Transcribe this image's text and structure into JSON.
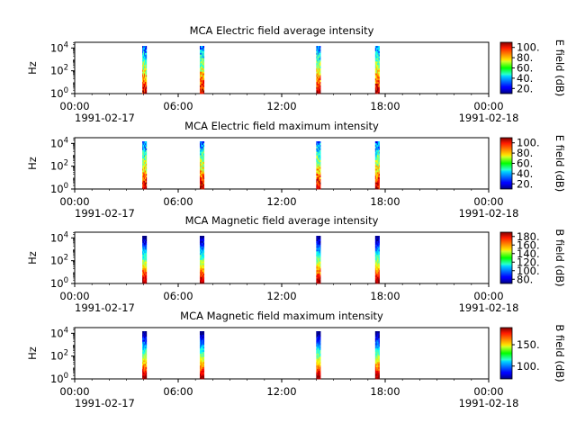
{
  "chart_data": [
    {
      "type": "heatmap",
      "title": "MCA  Electric field average intensity",
      "ylabel": "Hz",
      "y_ticks": [
        "10^0",
        "10^2",
        "10^4"
      ],
      "y_scale": "log",
      "ylim": [
        1,
        31622
      ],
      "x_ticks": [
        "00:00",
        "06:00",
        "12:00",
        "18:00",
        "00:00"
      ],
      "x_dates": [
        "1991-02-17",
        "1991-02-18"
      ],
      "xlim": [
        "1991-02-17 00:00",
        "1991-02-18 00:00"
      ],
      "colorbar_label": "E field (dB)",
      "colorbar_ticks": [
        20,
        40,
        60,
        80,
        100
      ],
      "colorbar_range": [
        10,
        110
      ],
      "colormap": "jet",
      "data_intervals": [
        {
          "start": "03:55",
          "end": "04:10"
        },
        {
          "start": "07:15",
          "end": "07:30"
        },
        {
          "start": "14:00",
          "end": "14:15"
        },
        {
          "start": "17:25",
          "end": "17:40"
        }
      ]
    },
    {
      "type": "heatmap",
      "title": "MCA  Electric field maximum intensity",
      "ylabel": "Hz",
      "y_ticks": [
        "10^0",
        "10^2",
        "10^4"
      ],
      "y_scale": "log",
      "ylim": [
        1,
        31622
      ],
      "x_ticks": [
        "00:00",
        "06:00",
        "12:00",
        "18:00",
        "00:00"
      ],
      "x_dates": [
        "1991-02-17",
        "1991-02-18"
      ],
      "xlim": [
        "1991-02-17 00:00",
        "1991-02-18 00:00"
      ],
      "colorbar_label": "E field (dB)",
      "colorbar_ticks": [
        20,
        40,
        60,
        80,
        100
      ],
      "colorbar_range": [
        10,
        110
      ],
      "colormap": "jet",
      "data_intervals": [
        {
          "start": "03:55",
          "end": "04:10"
        },
        {
          "start": "07:15",
          "end": "07:30"
        },
        {
          "start": "14:00",
          "end": "14:15"
        },
        {
          "start": "17:25",
          "end": "17:40"
        }
      ]
    },
    {
      "type": "heatmap",
      "title": "MCA  Magnetic field average intensity",
      "ylabel": "Hz",
      "y_ticks": [
        "10^0",
        "10^2",
        "10^4"
      ],
      "y_scale": "log",
      "ylim": [
        1,
        31622
      ],
      "x_ticks": [
        "00:00",
        "06:00",
        "12:00",
        "18:00",
        "00:00"
      ],
      "x_dates": [
        "1991-02-17",
        "1991-02-18"
      ],
      "xlim": [
        "1991-02-17 00:00",
        "1991-02-18 00:00"
      ],
      "colorbar_label": "B field (dB)",
      "colorbar_ticks": [
        80,
        100,
        120,
        140,
        160,
        180
      ],
      "colorbar_range": [
        70,
        190
      ],
      "colormap": "jet",
      "data_intervals": [
        {
          "start": "03:55",
          "end": "04:10"
        },
        {
          "start": "07:15",
          "end": "07:30"
        },
        {
          "start": "14:00",
          "end": "14:15"
        },
        {
          "start": "17:25",
          "end": "17:40"
        }
      ]
    },
    {
      "type": "heatmap",
      "title": "MCA  Magnetic field maximum intensity",
      "ylabel": "Hz",
      "y_ticks": [
        "10^0",
        "10^2",
        "10^4"
      ],
      "y_scale": "log",
      "ylim": [
        1,
        31622
      ],
      "x_ticks": [
        "00:00",
        "06:00",
        "12:00",
        "18:00",
        "00:00"
      ],
      "x_dates": [
        "1991-02-17",
        "1991-02-18"
      ],
      "xlim": [
        "1991-02-17 00:00",
        "1991-02-18 00:00"
      ],
      "colorbar_label": "B field (dB)",
      "colorbar_ticks": [
        100,
        150
      ],
      "colorbar_range": [
        70,
        190
      ],
      "colormap": "jet",
      "data_intervals": [
        {
          "start": "03:55",
          "end": "04:10"
        },
        {
          "start": "07:15",
          "end": "07:30"
        },
        {
          "start": "14:00",
          "end": "14:15"
        },
        {
          "start": "17:25",
          "end": "17:40"
        }
      ]
    }
  ]
}
